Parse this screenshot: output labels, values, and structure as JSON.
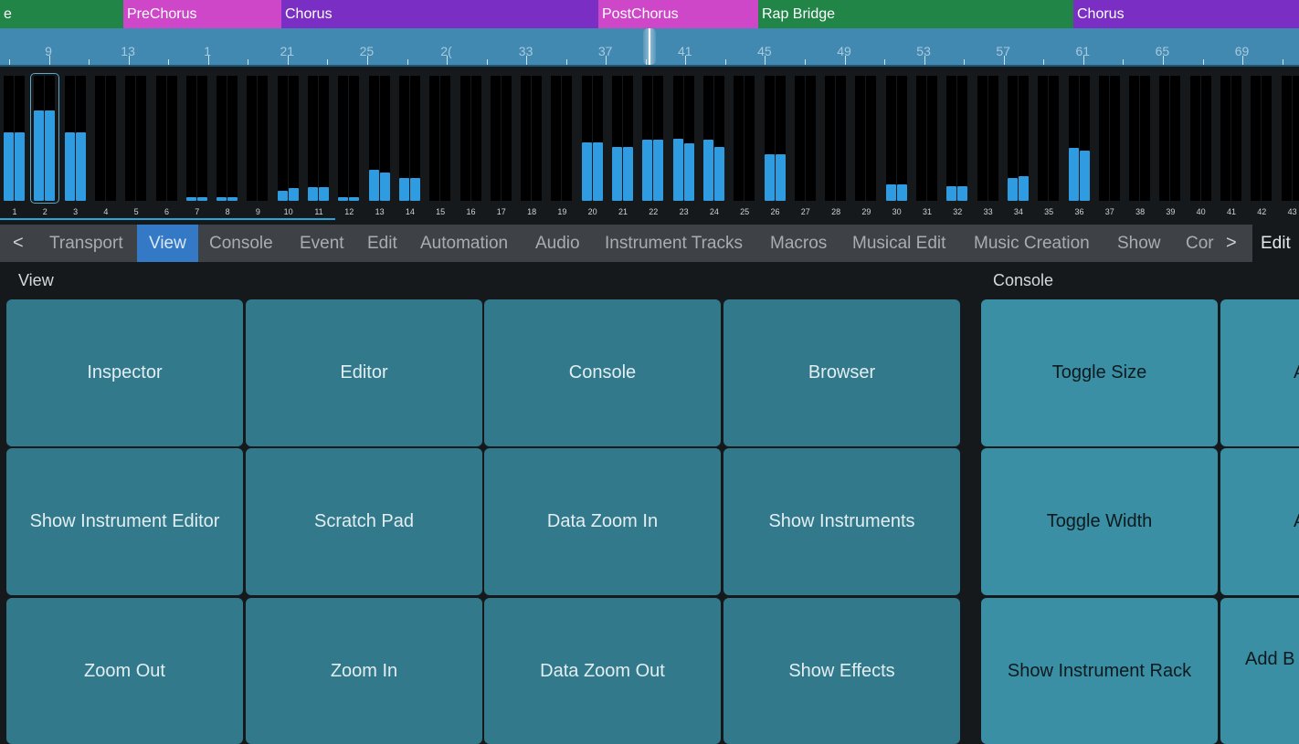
{
  "sections": [
    {
      "label": "e",
      "color": "#218548"
    },
    {
      "label": "PreChorus",
      "color": "#cd47c8"
    },
    {
      "label": "Chorus",
      "color": "#7a2ec4"
    },
    {
      "label": "PostChorus",
      "color": "#cd47c8"
    },
    {
      "label": "Rap Bridge",
      "color": "#218548"
    },
    {
      "label": "Chorus",
      "color": "#7a2ec4"
    }
  ],
  "ruler": {
    "labels": [
      "9",
      "13",
      "1",
      "21",
      "25",
      "2(",
      "33",
      "37",
      "41",
      "45",
      "49",
      "53",
      "57",
      "61",
      "65",
      "69"
    ]
  },
  "meters": {
    "selected_channel": 2,
    "channels": [
      {
        "n": "1",
        "l": 0.55,
        "r": 0.55
      },
      {
        "n": "2",
        "l": 0.72,
        "r": 0.72
      },
      {
        "n": "3",
        "l": 0.55,
        "r": 0.55
      },
      {
        "n": "4",
        "l": 0,
        "r": 0
      },
      {
        "n": "5",
        "l": 0,
        "r": 0
      },
      {
        "n": "6",
        "l": 0,
        "r": 0
      },
      {
        "n": "7",
        "l": 0.03,
        "r": 0.03
      },
      {
        "n": "8",
        "l": 0.03,
        "r": 0.03
      },
      {
        "n": "9",
        "l": 0,
        "r": 0
      },
      {
        "n": "10",
        "l": 0.08,
        "r": 0.1
      },
      {
        "n": "11",
        "l": 0.11,
        "r": 0.11
      },
      {
        "n": "12",
        "l": 0.03,
        "r": 0.03
      },
      {
        "n": "13",
        "l": 0.25,
        "r": 0.23
      },
      {
        "n": "14",
        "l": 0.18,
        "r": 0.18
      },
      {
        "n": "15",
        "l": 0,
        "r": 0
      },
      {
        "n": "16",
        "l": 0,
        "r": 0
      },
      {
        "n": "17",
        "l": 0,
        "r": 0
      },
      {
        "n": "18",
        "l": 0,
        "r": 0
      },
      {
        "n": "19",
        "l": 0,
        "r": 0
      },
      {
        "n": "20",
        "l": 0.47,
        "r": 0.47
      },
      {
        "n": "21",
        "l": 0.43,
        "r": 0.43
      },
      {
        "n": "22",
        "l": 0.49,
        "r": 0.49
      },
      {
        "n": "23",
        "l": 0.5,
        "r": 0.46
      },
      {
        "n": "24",
        "l": 0.49,
        "r": 0.43
      },
      {
        "n": "25",
        "l": 0,
        "r": 0
      },
      {
        "n": "26",
        "l": 0.37,
        "r": 0.37
      },
      {
        "n": "27",
        "l": 0,
        "r": 0
      },
      {
        "n": "28",
        "l": 0,
        "r": 0
      },
      {
        "n": "29",
        "l": 0,
        "r": 0
      },
      {
        "n": "30",
        "l": 0.13,
        "r": 0.13
      },
      {
        "n": "31",
        "l": 0,
        "r": 0
      },
      {
        "n": "32",
        "l": 0.12,
        "r": 0.12
      },
      {
        "n": "33",
        "l": 0,
        "r": 0
      },
      {
        "n": "34",
        "l": 0.18,
        "r": 0.2
      },
      {
        "n": "35",
        "l": 0,
        "r": 0
      },
      {
        "n": "36",
        "l": 0.42,
        "r": 0.4
      },
      {
        "n": "37",
        "l": 0,
        "r": 0
      },
      {
        "n": "38",
        "l": 0,
        "r": 0
      },
      {
        "n": "39",
        "l": 0,
        "r": 0
      },
      {
        "n": "40",
        "l": 0,
        "r": 0
      },
      {
        "n": "41",
        "l": 0,
        "r": 0
      },
      {
        "n": "42",
        "l": 0,
        "r": 0
      },
      {
        "n": "43",
        "l": 0,
        "r": 0
      }
    ]
  },
  "tabs": {
    "prev": "<",
    "next": ">",
    "items": [
      "Transport",
      "View",
      "Console",
      "Event",
      "Edit",
      "Automation",
      "Audio",
      "Instrument Tracks",
      "Macros",
      "Musical Edit",
      "Music Creation",
      "Show",
      "Cor"
    ],
    "active": "View",
    "overflow": "Edit"
  },
  "view": {
    "label": "View",
    "buttons": [
      "Inspector",
      "Editor",
      "Console",
      "Browser",
      "Show Instrument Editor",
      "Scratch Pad",
      "Data Zoom In",
      "Show Instruments",
      "Zoom Out",
      "Zoom In",
      "Data Zoom Out",
      "Show Effects"
    ]
  },
  "console": {
    "label": "Console",
    "buttons": [
      "Toggle Size",
      "A",
      "Toggle Width",
      "A",
      "Show Instrument Rack",
      "Add B"
    ]
  }
}
